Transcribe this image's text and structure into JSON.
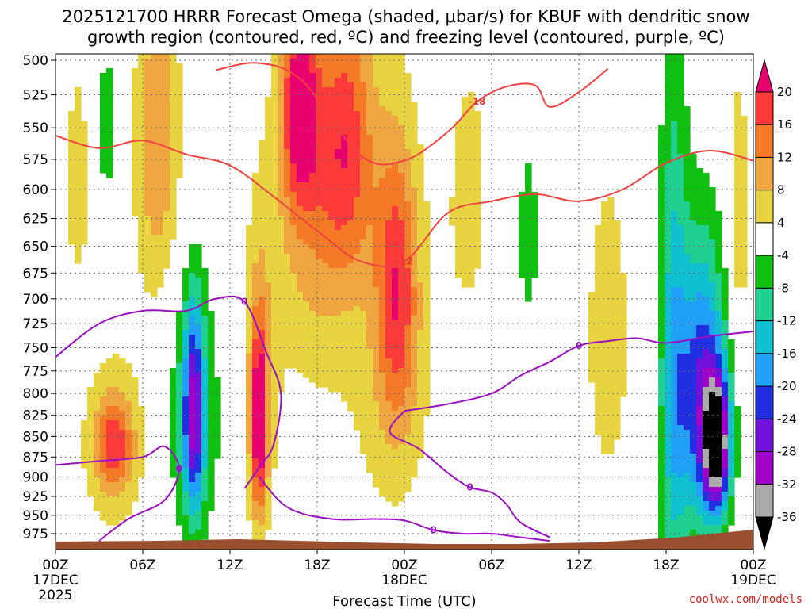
{
  "chart_data": {
    "type": "heatmap",
    "title_line1": "2025121700 HRRR Forecast Omega (shaded, μbar/s) for KBUF with dendritic snow",
    "title_line2": "growth region (contoured, red, ºC) and freezing level (contoured, purple, ºC)",
    "xlabel": "Forecast Time (UTC)",
    "ylabel": "",
    "credit": "coolwx.com/models",
    "x_range_hours": [
      0,
      48
    ],
    "x_ticks": [
      {
        "h": 0,
        "label": "00Z",
        "sub1": "17DEC",
        "sub2": "2025"
      },
      {
        "h": 6,
        "label": "06Z"
      },
      {
        "h": 12,
        "label": "12Z"
      },
      {
        "h": 18,
        "label": "18Z"
      },
      {
        "h": 24,
        "label": "00Z",
        "sub1": "18DEC"
      },
      {
        "h": 30,
        "label": "06Z"
      },
      {
        "h": 36,
        "label": "12Z"
      },
      {
        "h": 42,
        "label": "18Z"
      },
      {
        "h": 48,
        "label": "00Z",
        "sub1": "19DEC"
      }
    ],
    "y_axis": "pressure (hPa), log scale, inverted",
    "y_range": [
      500,
      1000
    ],
    "y_ticks": [
      500,
      525,
      550,
      575,
      600,
      625,
      650,
      675,
      700,
      725,
      750,
      775,
      800,
      825,
      850,
      875,
      900,
      925,
      950,
      975
    ],
    "colorbar": {
      "labels": [
        "20",
        "16",
        "12",
        "8",
        "4",
        "-4",
        "-8",
        "-12",
        "-16",
        "-20",
        "-24",
        "-28",
        "-32",
        "-36"
      ],
      "colors": [
        "#e8006e",
        "#ff3a3a",
        "#f57a28",
        "#f0a640",
        "#e8d440",
        "#ffffff",
        "#10c010",
        "#20d090",
        "#10c0d0",
        "#20a0f8",
        "#2030e0",
        "#7010d8",
        "#a000c8",
        "#aaaaaa",
        "#000000"
      ]
    },
    "shading_blobs": [
      {
        "h": 1.5,
        "p": 590,
        "hw": 1.0,
        "pw": 110,
        "v": 6
      },
      {
        "h": 4.0,
        "p": 860,
        "hw": 1.3,
        "pw": 55,
        "v": 14
      },
      {
        "h": 4.0,
        "p": 860,
        "hw": 2.6,
        "pw": 140,
        "v": 6
      },
      {
        "h": 3.5,
        "p": 550,
        "hw": 0.8,
        "pw": 80,
        "v": -6
      },
      {
        "h": 7.0,
        "p": 560,
        "hw": 1.6,
        "pw": 130,
        "v": 12
      },
      {
        "h": 9.5,
        "p": 820,
        "hw": 0.7,
        "pw": 120,
        "v": -22
      },
      {
        "h": 9.5,
        "p": 830,
        "hw": 1.8,
        "pw": 150,
        "v": -10
      },
      {
        "h": 14.0,
        "p": 830,
        "hw": 0.5,
        "pw": 110,
        "v": 20
      },
      {
        "h": 14.0,
        "p": 800,
        "hw": 1.3,
        "pw": 200,
        "v": 8
      },
      {
        "h": 16.8,
        "p": 530,
        "hw": 1.2,
        "pw": 80,
        "v": 20
      },
      {
        "h": 17.5,
        "p": 620,
        "hw": 2.8,
        "pw": 170,
        "v": 9
      },
      {
        "h": 20.0,
        "p": 560,
        "hw": 2.0,
        "pw": 110,
        "v": 15
      },
      {
        "h": 23.5,
        "p": 690,
        "hw": 1.4,
        "pw": 140,
        "v": 15
      },
      {
        "h": 23.0,
        "p": 760,
        "hw": 3.5,
        "pw": 230,
        "v": 6
      },
      {
        "h": 28.5,
        "p": 600,
        "hw": 1.8,
        "pw": 150,
        "v": 5
      },
      {
        "h": 32.5,
        "p": 640,
        "hw": 0.9,
        "pw": 100,
        "v": -6
      },
      {
        "h": 38.0,
        "p": 740,
        "hw": 1.6,
        "pw": 180,
        "v": 7
      },
      {
        "h": 42.5,
        "p": 780,
        "hw": 1.0,
        "pw": 300,
        "v": -14
      },
      {
        "h": 44.5,
        "p": 800,
        "hw": 1.6,
        "pw": 160,
        "v": -24
      },
      {
        "h": 45.5,
        "p": 860,
        "hw": 0.9,
        "pw": 80,
        "v": -34
      },
      {
        "h": 47.0,
        "p": 620,
        "hw": 0.7,
        "pw": 120,
        "v": 8
      }
    ],
    "dendritic_contours": [
      {
        "label": "-12",
        "points": [
          [
            0,
            556
          ],
          [
            3,
            566
          ],
          [
            6,
            560
          ],
          [
            9,
            571
          ],
          [
            12,
            580
          ],
          [
            15,
            606
          ],
          [
            18,
            636
          ],
          [
            21,
            664
          ],
          [
            24,
            664
          ],
          [
            27,
            620
          ],
          [
            30,
            610
          ],
          [
            33,
            604
          ],
          [
            36,
            610
          ],
          [
            39,
            600
          ],
          [
            42,
            578
          ],
          [
            45,
            568
          ],
          [
            48,
            576
          ]
        ]
      },
      {
        "label": "-18",
        "points": [
          [
            11,
            507
          ],
          [
            14,
            502
          ],
          [
            17,
            515
          ],
          [
            21,
            572
          ],
          [
            24,
            576
          ],
          [
            27,
            553
          ],
          [
            29,
            530
          ],
          [
            31,
            519
          ],
          [
            33,
            518
          ],
          [
            34,
            534
          ],
          [
            36,
            523
          ],
          [
            38,
            506
          ]
        ]
      }
    ],
    "freezing_level_contours": [
      {
        "label": "0",
        "points": [
          [
            0,
            760
          ],
          [
            3,
            725
          ],
          [
            6,
            712
          ],
          [
            9,
            712
          ],
          [
            11,
            700
          ],
          [
            13,
            703
          ],
          [
            14.5,
            755
          ],
          [
            15.5,
            800
          ],
          [
            15,
            860
          ],
          [
            14,
            888
          ],
          [
            13,
            915
          ]
        ]
      },
      {
        "label": "0",
        "points": [
          [
            0,
            885
          ],
          [
            3,
            880
          ],
          [
            6,
            875
          ],
          [
            7.5,
            862
          ],
          [
            8.5,
            890
          ],
          [
            7.5,
            930
          ],
          [
            5,
            955
          ],
          [
            3,
            985
          ]
        ]
      },
      {
        "label": "0",
        "points": [
          [
            14,
            900
          ],
          [
            16,
            940
          ],
          [
            19,
            955
          ],
          [
            22,
            955
          ],
          [
            24,
            957
          ],
          [
            26,
            970
          ],
          [
            28,
            975
          ],
          [
            30,
            975
          ],
          [
            32,
            980
          ],
          [
            34,
            985
          ]
        ]
      },
      {
        "label": "0",
        "points": [
          [
            24,
            820
          ],
          [
            27,
            812
          ],
          [
            30,
            800
          ],
          [
            32,
            780
          ],
          [
            34,
            765
          ],
          [
            36,
            748
          ],
          [
            38,
            743
          ],
          [
            40,
            740
          ],
          [
            42,
            745
          ],
          [
            45,
            738
          ],
          [
            48,
            733
          ]
        ]
      },
      {
        "label": "0",
        "points": [
          [
            24,
            820
          ],
          [
            23,
            845
          ],
          [
            25,
            865
          ],
          [
            27,
            895
          ],
          [
            28.5,
            913
          ],
          [
            30,
            920
          ],
          [
            31,
            935
          ],
          [
            32,
            960
          ],
          [
            34,
            980
          ]
        ]
      }
    ]
  }
}
